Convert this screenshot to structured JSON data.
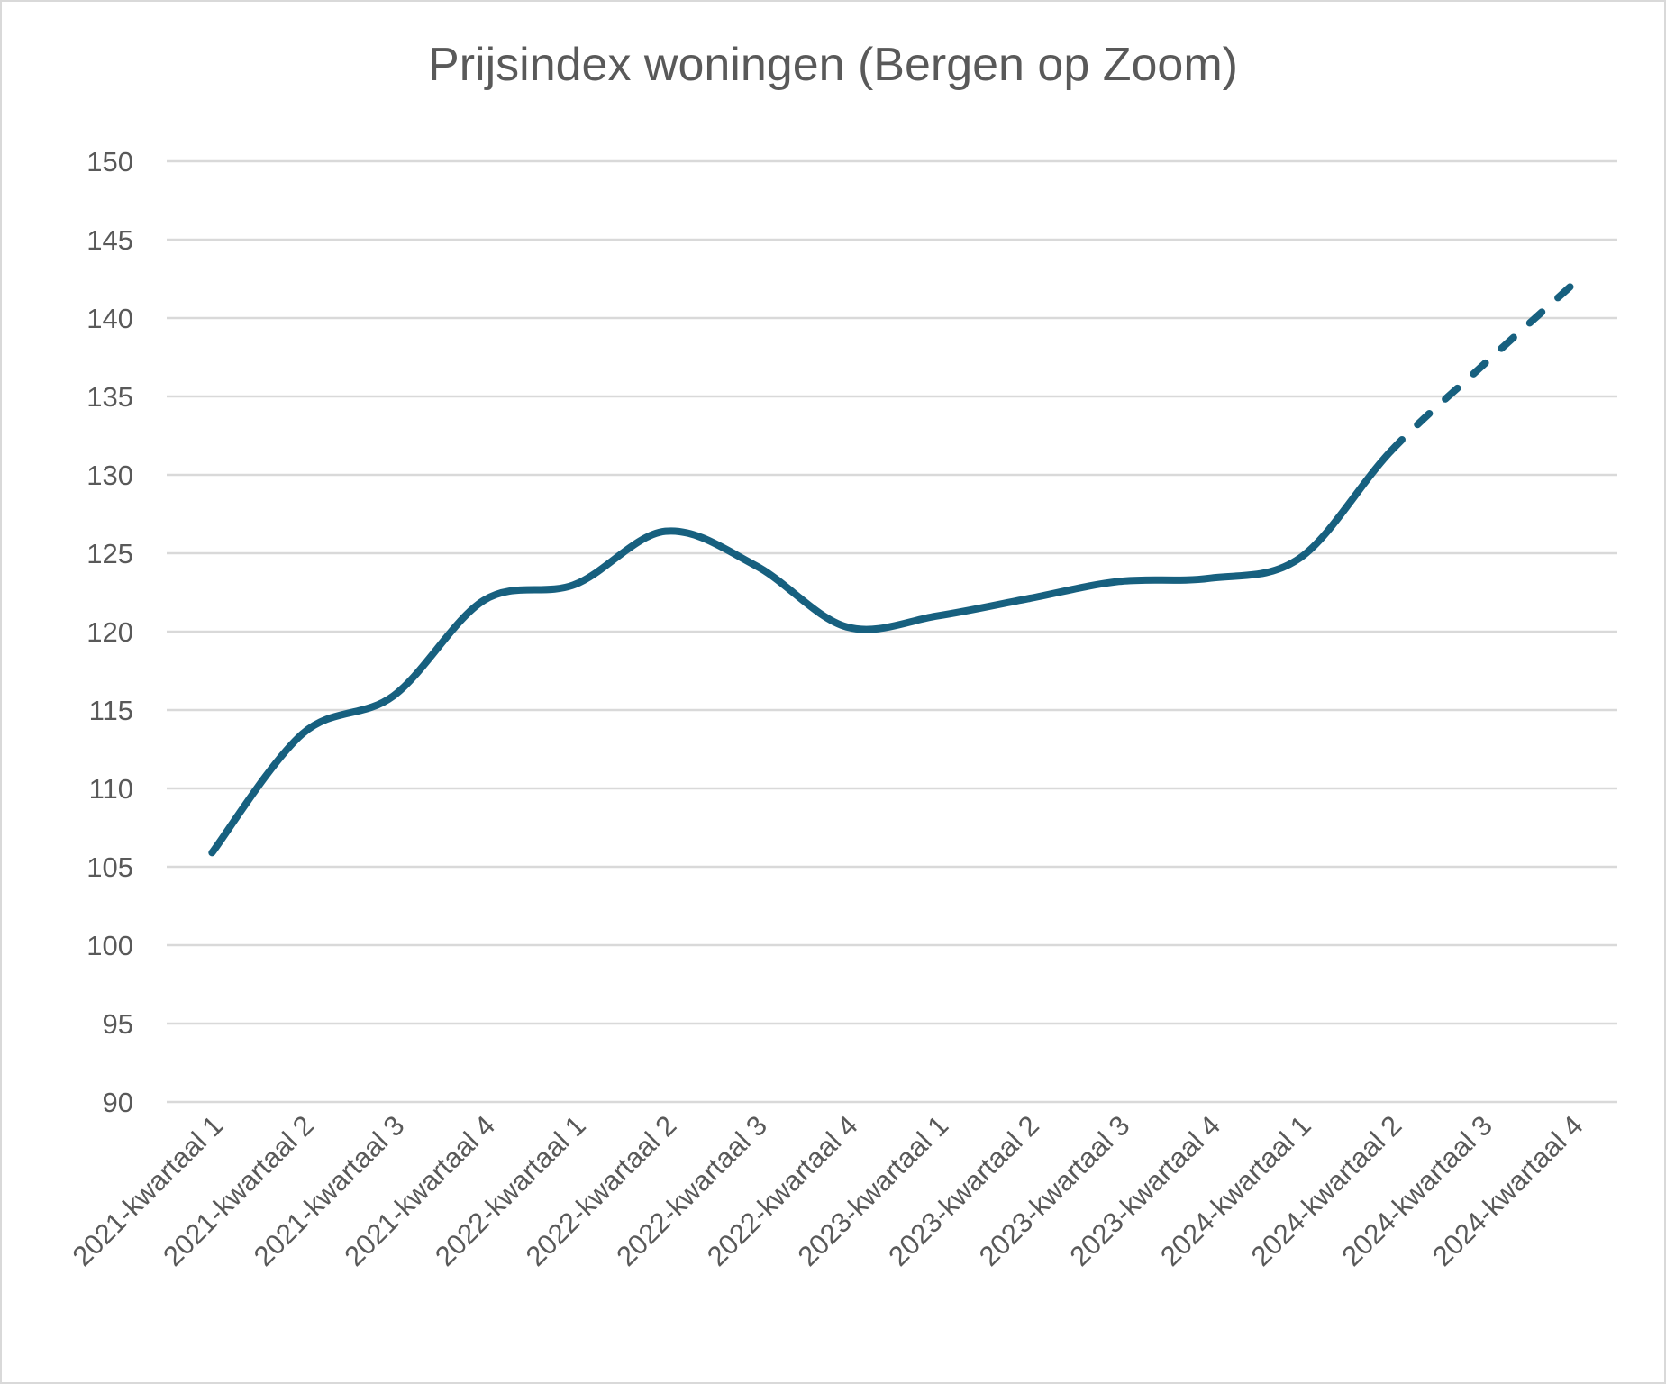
{
  "chart_data": {
    "type": "line",
    "title": "Prijsindex woningen (Bergen op Zoom)",
    "xlabel": "",
    "ylabel": "",
    "ylim": [
      90,
      150
    ],
    "yticks": [
      90,
      95,
      100,
      105,
      110,
      115,
      120,
      125,
      130,
      135,
      140,
      145,
      150
    ],
    "grid": true,
    "legend": "none",
    "categories": [
      "2021-kwartaal 1",
      "2021-kwartaal 2",
      "2021-kwartaal 3",
      "2021-kwartaal 4",
      "2022-kwartaal 1",
      "2022-kwartaal 2",
      "2022-kwartaal 3",
      "2022-kwartaal 4",
      "2023-kwartaal 1",
      "2023-kwartaal 2",
      "2023-kwartaal 3",
      "2023-kwartaal 4",
      "2024-kwartaal 1",
      "2024-kwartaal 2",
      "2024-kwartaal 3",
      "2024-kwartaal 4"
    ],
    "series": [
      {
        "name": "Prijsindex",
        "color": "#17607f",
        "smooth": true,
        "values": [
          105.9,
          113.5,
          115.9,
          122.0,
          123.0,
          126.4,
          124.2,
          120.3,
          121.0,
          122.1,
          123.2,
          123.4,
          124.7,
          131.5,
          136.9,
          142.1
        ],
        "dashed_from_index": 13
      }
    ]
  }
}
